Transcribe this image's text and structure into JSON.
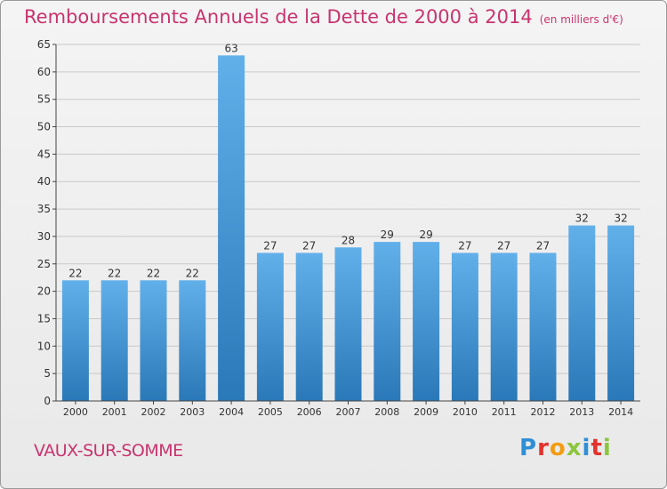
{
  "header": {
    "title": "Remboursements Annuels de la Dette de 2000 à 2014",
    "unit": "(en milliers d'€)"
  },
  "footer": {
    "commune": "VAUX-SUR-SOMME",
    "logo_text": "Proxiti"
  },
  "colors": {
    "title": "#c8346f",
    "bar_top": "#62b0ea",
    "bar_bottom": "#2a78b7"
  },
  "chart_data": {
    "type": "bar",
    "title": "Remboursements Annuels de la Dette de 2000 à 2014",
    "xlabel": "",
    "ylabel": "",
    "categories": [
      "2000",
      "2001",
      "2002",
      "2003",
      "2004",
      "2005",
      "2006",
      "2007",
      "2008",
      "2009",
      "2010",
      "2011",
      "2012",
      "2013",
      "2014"
    ],
    "values": [
      22,
      22,
      22,
      22,
      63,
      27,
      27,
      28,
      29,
      29,
      27,
      27,
      27,
      32,
      32
    ],
    "ylim": [
      0,
      65
    ],
    "yticks": [
      0,
      5,
      10,
      15,
      20,
      25,
      30,
      35,
      40,
      45,
      50,
      55,
      60,
      65
    ],
    "grid": true,
    "data_labels": true
  }
}
